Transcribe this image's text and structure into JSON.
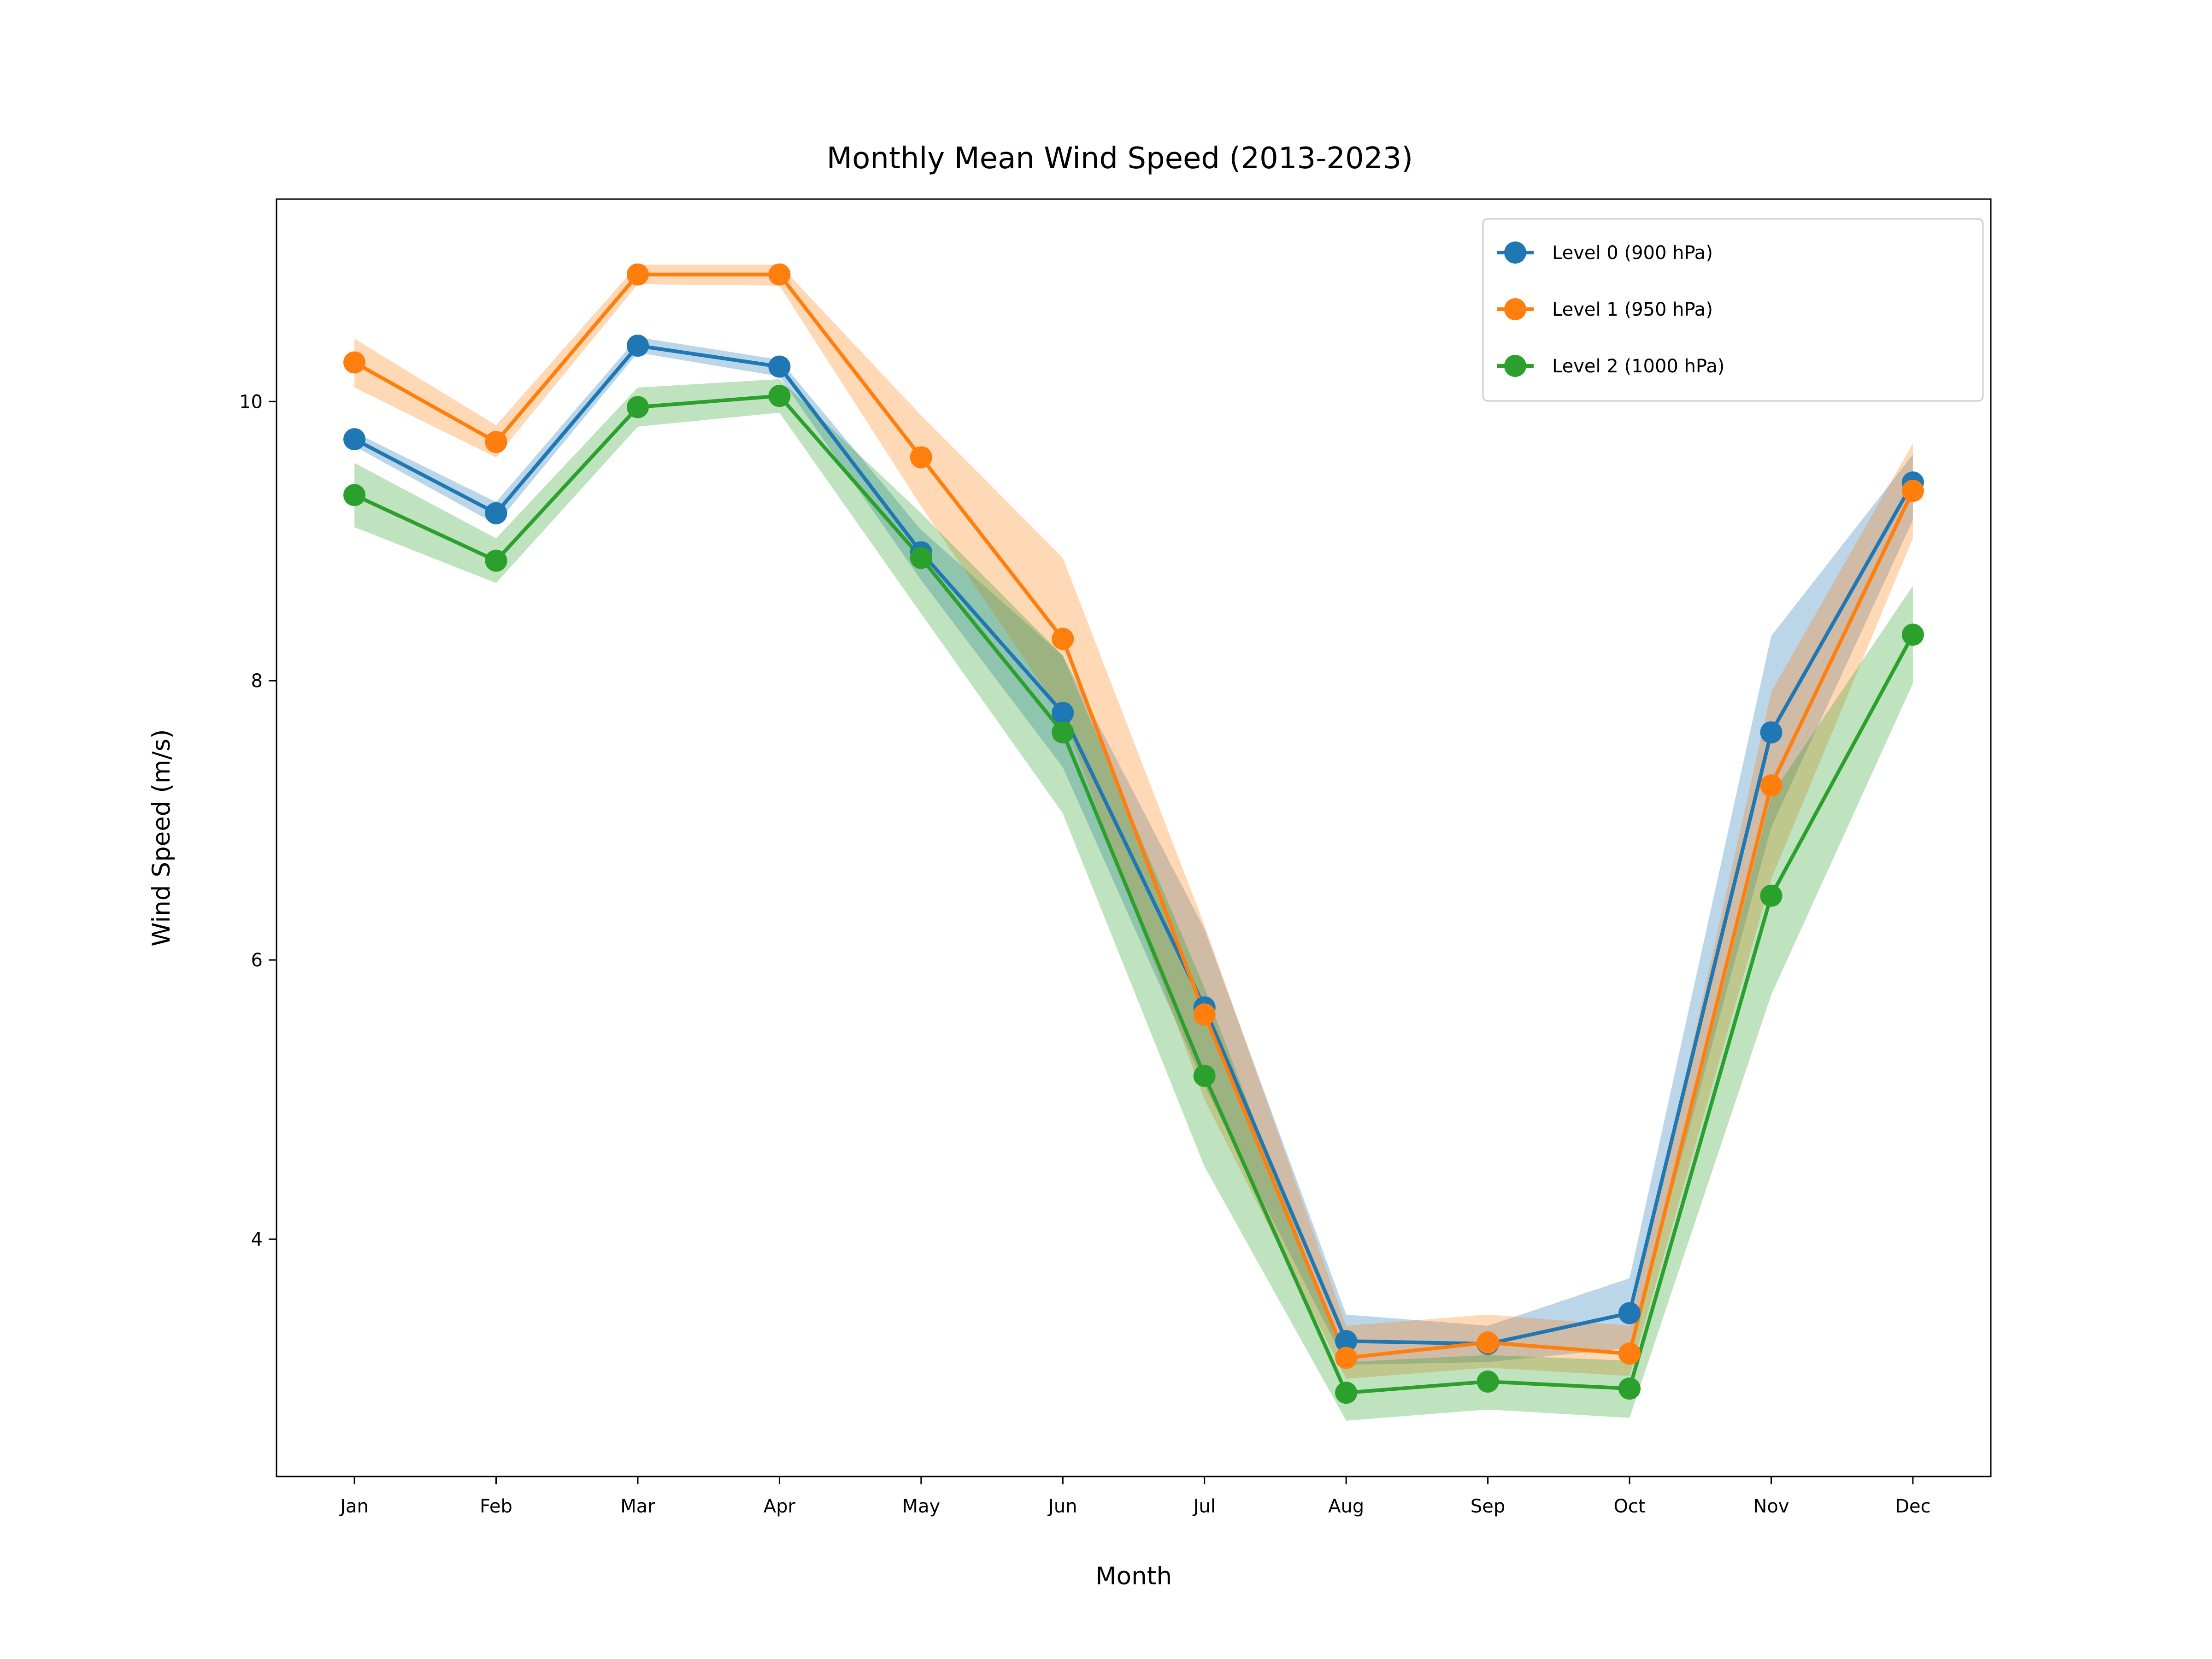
{
  "chart_data": {
    "type": "line",
    "title": "Monthly Mean Wind Speed (2013-2023)",
    "xlabel": "Month",
    "ylabel": "Wind Speed (m/s)",
    "categories": [
      "Jan",
      "Feb",
      "Mar",
      "Apr",
      "May",
      "Jun",
      "Jul",
      "Aug",
      "Sep",
      "Oct",
      "Nov",
      "Dec"
    ],
    "ylim": [
      2.3,
      11.45
    ],
    "yticks": [
      4,
      6,
      8,
      10
    ],
    "grid": false,
    "legend_position": "top-right",
    "series": [
      {
        "name": "Level 0 (900 hPa)",
        "color": "#1f77b4",
        "values": [
          9.73,
          9.2,
          10.4,
          10.25,
          8.92,
          7.77,
          5.66,
          3.27,
          3.25,
          3.47,
          7.63,
          9.42
        ],
        "lower": [
          9.68,
          9.12,
          10.35,
          10.18,
          8.72,
          7.38,
          5.1,
          3.1,
          3.12,
          3.22,
          6.95,
          9.15
        ],
        "upper": [
          9.78,
          9.28,
          10.46,
          10.3,
          9.08,
          8.18,
          6.22,
          3.46,
          3.38,
          3.72,
          8.32,
          9.62
        ]
      },
      {
        "name": "Level 1 (950 hPa)",
        "color": "#ff7f0e",
        "values": [
          10.28,
          9.71,
          10.91,
          10.91,
          9.6,
          8.3,
          5.61,
          3.15,
          3.26,
          3.18,
          7.25,
          9.36
        ],
        "lower": [
          10.1,
          9.6,
          10.84,
          10.83,
          9.25,
          7.75,
          5.0,
          3.0,
          3.08,
          3.02,
          6.58,
          9.02
        ],
        "upper": [
          10.45,
          9.83,
          10.98,
          10.98,
          9.9,
          8.88,
          6.25,
          3.38,
          3.46,
          3.38,
          7.92,
          9.7
        ]
      },
      {
        "name": "Level 2 (1000 hPa)",
        "color": "#2ca02c",
        "values": [
          9.33,
          8.86,
          9.96,
          10.04,
          8.88,
          7.63,
          5.17,
          2.9,
          2.98,
          2.93,
          6.46,
          8.33
        ],
        "lower": [
          9.1,
          8.7,
          9.82,
          9.92,
          8.48,
          7.05,
          4.52,
          2.7,
          2.78,
          2.72,
          5.75,
          7.98
        ],
        "upper": [
          9.56,
          9.02,
          10.1,
          10.16,
          9.2,
          8.18,
          5.8,
          3.12,
          3.17,
          3.13,
          7.18,
          8.68
        ]
      }
    ]
  }
}
